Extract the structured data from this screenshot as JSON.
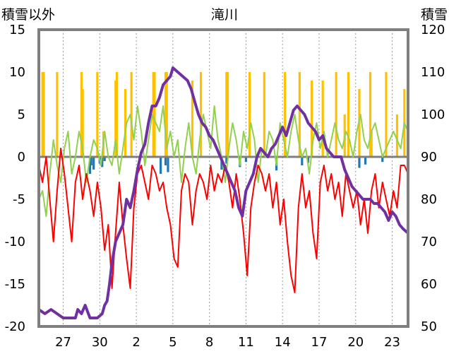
{
  "chart_data": {
    "type": "line",
    "title": "滝川",
    "ylabel_left": "積雪以外",
    "ylabel_right": "積雪",
    "ylim_left": [
      -20,
      15
    ],
    "ylim_right": [
      50,
      120
    ],
    "yticks_left": [
      "15",
      "10",
      "5",
      "0",
      "-5",
      "-10",
      "-15",
      "-20"
    ],
    "yticks_right": [
      "120",
      "110",
      "100",
      "90",
      "80",
      "70",
      "60",
      "50"
    ],
    "x_tick_labels": [
      "27",
      "30",
      "2",
      "5",
      "8",
      "11",
      "14",
      "17",
      "20",
      "23"
    ],
    "x_tick_positions": [
      2,
      5,
      8,
      11,
      14,
      17,
      20,
      23,
      26,
      29
    ],
    "x_range": [
      0,
      30.3
    ],
    "grid": "vertical dotted",
    "series": [
      {
        "name": "precipitation",
        "kind": "bar",
        "axis": "left",
        "color": "#ffc000",
        "x": [
          0.3,
          0.4,
          1.5,
          3.5,
          3.6,
          4.8,
          5.3,
          6.3,
          6.4,
          7.1,
          7.6,
          9.4,
          9.5,
          10.4,
          10.5,
          12.6,
          13.3,
          15.4,
          15.5,
          17.3,
          18.5,
          20.2,
          21.4,
          22.4,
          23.3,
          24.4,
          25.1,
          25.4,
          26.3,
          27.2,
          27.3,
          28.5,
          29.4,
          30.0
        ],
        "values": [
          10,
          10,
          10,
          10,
          8,
          10,
          3,
          9,
          10,
          8,
          10,
          10,
          10,
          10,
          10,
          9,
          10,
          10,
          10,
          10,
          10,
          10,
          10,
          9,
          9,
          10,
          5,
          10,
          8,
          10,
          3,
          10,
          5,
          8
        ]
      },
      {
        "name": "snowfall_below_zero",
        "kind": "bar",
        "axis": "left",
        "color": "#1f77b4",
        "x": [
          4.2,
          4.3,
          4.5,
          5.0,
          5.2,
          5.4,
          10.0,
          10.4,
          10.6,
          15.0,
          15.4,
          16.5,
          17.0,
          19.5,
          21.6,
          22.1,
          26.3,
          26.8,
          28.2
        ],
        "values": [
          -2,
          -1,
          -1.5,
          -0.8,
          -1.2,
          -0.5,
          -2,
          -1,
          -1.8,
          -1.5,
          -0.8,
          -1.2,
          -0.6,
          -1.6,
          -1,
          -0.7,
          -1.3,
          -0.9,
          -0.6
        ]
      },
      {
        "name": "max_temperature",
        "kind": "line",
        "axis": "left",
        "color": "#92d050",
        "x": [
          0.0,
          0.3,
          0.6,
          0.9,
          1.2,
          1.5,
          1.8,
          2.1,
          2.4,
          2.7,
          3.0,
          3.3,
          3.6,
          3.9,
          4.2,
          4.5,
          4.8,
          5.1,
          5.4,
          5.7,
          6.0,
          6.3,
          6.6,
          6.9,
          7.2,
          7.5,
          7.8,
          8.1,
          8.4,
          8.7,
          9.0,
          9.3,
          9.6,
          9.9,
          10.2,
          10.5,
          10.8,
          11.1,
          11.4,
          11.7,
          12.0,
          12.3,
          12.6,
          12.9,
          13.2,
          13.5,
          13.8,
          14.1,
          14.4,
          14.7,
          15.0,
          15.3,
          15.6,
          15.9,
          16.2,
          16.5,
          16.8,
          17.1,
          17.4,
          17.7,
          18.0,
          18.3,
          18.6,
          18.9,
          19.2,
          19.5,
          19.8,
          20.1,
          20.4,
          20.7,
          21.0,
          21.3,
          21.6,
          21.9,
          22.2,
          22.5,
          22.8,
          23.1,
          23.4,
          23.7,
          24.0,
          24.3,
          24.6,
          24.9,
          25.2,
          25.5,
          25.8,
          26.1,
          26.4,
          26.7,
          27.0,
          27.3,
          27.6,
          27.9,
          28.2,
          28.5,
          28.8,
          29.1,
          29.4,
          29.7,
          30.0,
          30.3
        ],
        "values": [
          -5,
          -4,
          -7,
          -2,
          2,
          -1,
          -3,
          1,
          3,
          -2,
          0,
          3,
          1,
          -3,
          0,
          2,
          1,
          -1,
          3,
          0,
          -1,
          2,
          -2,
          1,
          4,
          5,
          2,
          6,
          3,
          -1,
          2,
          5,
          4,
          3,
          6,
          1,
          3,
          0,
          2,
          -3,
          1,
          4,
          0,
          -2,
          2,
          5,
          3,
          1,
          6,
          2,
          0,
          -3,
          1,
          4,
          2,
          -1,
          3,
          1,
          4,
          2,
          -3,
          1,
          0,
          3,
          2,
          -1,
          4,
          2,
          0,
          3,
          5,
          2,
          0,
          1,
          -2,
          2,
          4,
          1,
          3,
          0,
          2,
          4,
          2,
          1,
          3,
          2,
          0,
          3,
          5,
          2,
          1,
          3,
          4,
          2,
          0,
          1,
          2,
          3,
          2,
          1,
          4,
          3
        ]
      },
      {
        "name": "min_temperature",
        "kind": "line",
        "axis": "left",
        "color": "#ff0000",
        "x": [
          0.0,
          0.3,
          0.6,
          0.9,
          1.2,
          1.5,
          1.8,
          2.1,
          2.4,
          2.7,
          3.0,
          3.3,
          3.6,
          3.9,
          4.2,
          4.5,
          4.8,
          5.1,
          5.4,
          5.7,
          6.0,
          6.3,
          6.6,
          6.9,
          7.2,
          7.5,
          7.8,
          8.1,
          8.4,
          8.7,
          9.0,
          9.3,
          9.6,
          9.9,
          10.2,
          10.5,
          10.8,
          11.1,
          11.4,
          11.7,
          12.0,
          12.3,
          12.6,
          12.9,
          13.2,
          13.5,
          13.8,
          14.1,
          14.4,
          14.7,
          15.0,
          15.3,
          15.6,
          15.9,
          16.2,
          16.5,
          16.8,
          17.1,
          17.4,
          17.7,
          18.0,
          18.3,
          18.6,
          18.9,
          19.2,
          19.5,
          19.8,
          20.1,
          20.4,
          20.7,
          21.0,
          21.3,
          21.6,
          21.9,
          22.2,
          22.5,
          22.8,
          23.1,
          23.4,
          23.7,
          24.0,
          24.3,
          24.6,
          24.9,
          25.2,
          25.5,
          25.8,
          26.1,
          26.4,
          26.7,
          27.0,
          27.3,
          27.6,
          27.9,
          28.2,
          28.5,
          28.8,
          29.1,
          29.4,
          29.7,
          30.0,
          30.3
        ],
        "values": [
          -1,
          -3,
          0,
          -5,
          -10,
          -4,
          1,
          -2,
          -6,
          -10,
          -3,
          -1,
          -5,
          -2,
          -4,
          -7,
          -3,
          -6,
          -11,
          -8,
          -15.5,
          -9,
          -3,
          -8,
          -12,
          -15.5,
          -6,
          -2,
          -1,
          -3,
          -5,
          -1,
          -2,
          -4,
          -3,
          -6,
          -8,
          -12,
          -13,
          -4,
          -2,
          -3,
          -8,
          -4,
          -2,
          -3,
          -5,
          -1,
          -4,
          -2,
          -3,
          -1,
          -3,
          -6,
          -2,
          -5,
          -9,
          -14,
          -6,
          -3,
          -1,
          -2,
          -4,
          -2,
          -6,
          -3,
          -8,
          -5,
          -10,
          -14,
          -16,
          -6,
          -2,
          -6,
          -4,
          -9,
          -12,
          -3,
          -1,
          -4,
          -2,
          -5,
          -3,
          -7,
          -2,
          -4,
          -6,
          -4,
          -8,
          -5,
          -9,
          -4,
          -2,
          -6,
          -3,
          -5,
          -7,
          -4,
          -6,
          -1,
          -1,
          -2
        ]
      },
      {
        "name": "snow_depth",
        "kind": "line",
        "axis": "right",
        "color": "#7030a0",
        "x": [
          0,
          0.5,
          1.0,
          1.5,
          2.0,
          2.5,
          3.0,
          3.2,
          3.5,
          3.8,
          4.2,
          4.5,
          4.8,
          5.2,
          5.4,
          5.6,
          5.8,
          6.0,
          6.3,
          6.6,
          6.9,
          7.2,
          7.5,
          7.8,
          8.1,
          8.4,
          8.7,
          9.0,
          9.3,
          9.6,
          9.9,
          10.2,
          10.5,
          10.8,
          11.0,
          11.4,
          11.8,
          12.2,
          12.5,
          12.8,
          13.1,
          13.4,
          13.7,
          14.0,
          14.3,
          14.6,
          14.9,
          15.2,
          15.5,
          15.8,
          16.1,
          16.4,
          16.7,
          17.0,
          17.3,
          17.6,
          17.9,
          18.2,
          18.5,
          18.8,
          19.1,
          19.4,
          19.7,
          20.0,
          20.3,
          20.6,
          20.9,
          21.2,
          21.5,
          21.8,
          22.1,
          22.4,
          22.7,
          23.0,
          23.3,
          23.6,
          23.9,
          24.2,
          24.5,
          24.8,
          25.1,
          25.4,
          25.7,
          26.0,
          26.3,
          26.6,
          26.9,
          27.2,
          27.5,
          27.8,
          28.1,
          28.4,
          28.7,
          29.0,
          29.3,
          29.6,
          29.9,
          30.3
        ],
        "values": [
          54,
          53,
          54,
          53,
          52,
          52,
          52,
          54,
          53,
          55,
          52,
          52,
          52,
          53,
          55,
          56,
          60,
          65,
          70,
          72,
          74,
          80,
          78,
          82,
          87,
          91,
          93,
          98,
          102,
          102,
          104,
          107,
          108,
          109,
          111,
          110,
          109,
          108,
          106,
          103,
          100,
          98,
          97,
          95,
          94,
          92,
          90,
          88,
          86,
          84,
          82,
          78,
          76,
          82,
          84,
          86,
          90,
          92,
          91,
          90,
          92,
          93,
          95,
          97,
          95,
          98,
          101,
          102,
          101,
          100,
          98,
          97,
          96,
          94,
          95,
          92,
          91,
          90,
          90,
          90,
          87,
          85,
          83,
          82,
          81,
          80,
          80,
          80,
          79,
          79,
          78,
          77,
          75,
          77,
          76,
          74,
          73,
          72
        ]
      }
    ]
  }
}
